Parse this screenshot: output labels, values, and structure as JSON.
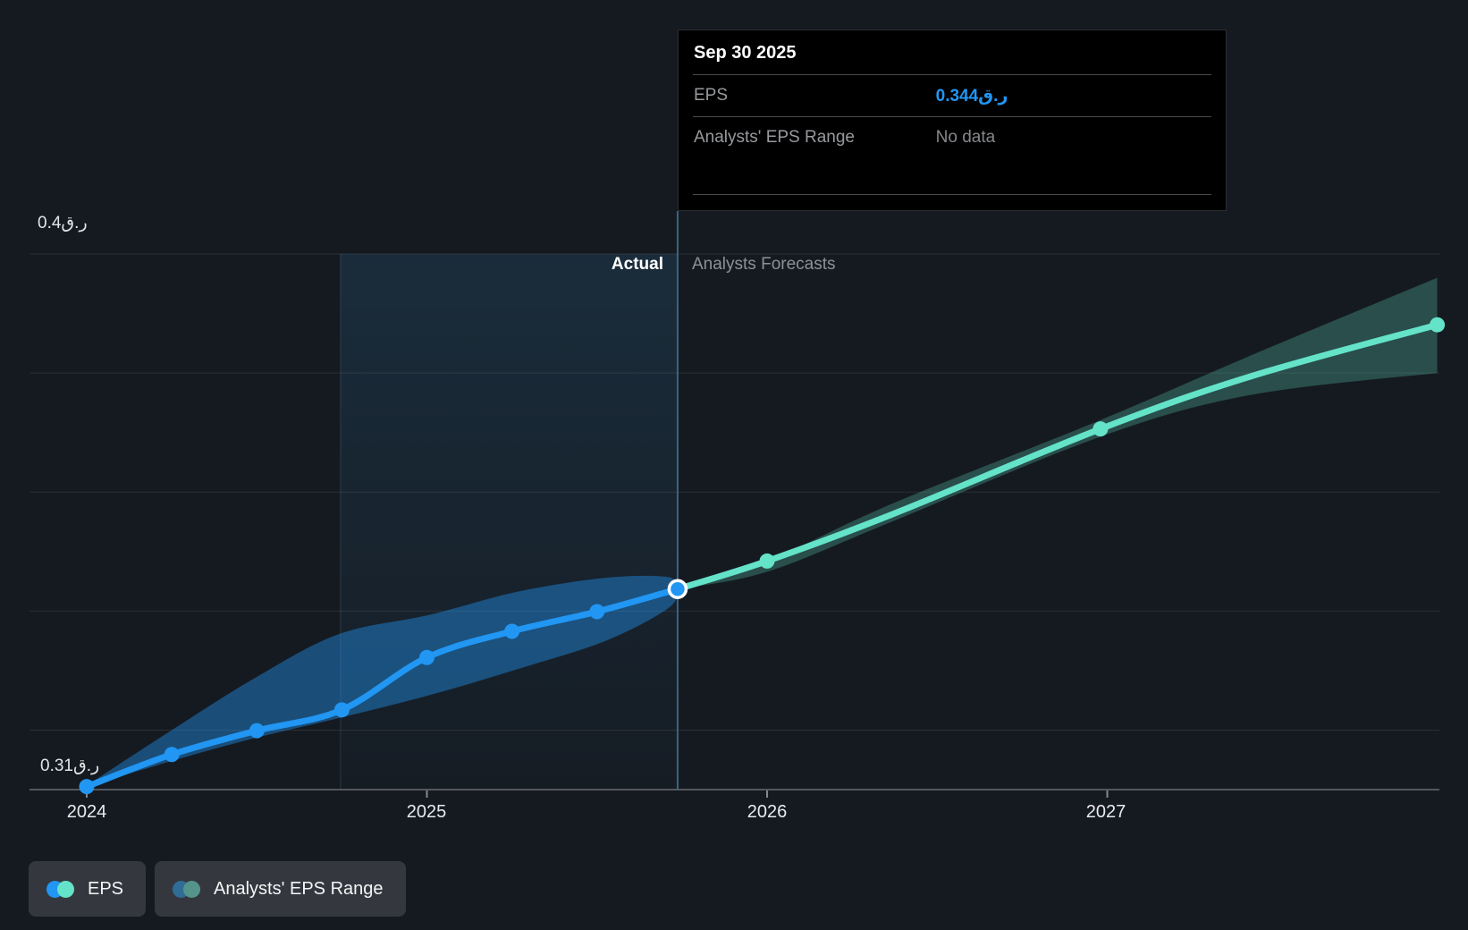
{
  "colors": {
    "background": "#151a21",
    "eps_blue": "#2196f3",
    "forecast_teal": "#64e3c9",
    "range_blue_muted": "#2f6d96",
    "range_teal_muted": "#55948b",
    "tooltip_value_blue": "#2196f3",
    "gridline": "rgba(255,255,255,0.09)",
    "axis_line": "#53575d",
    "divider_line": "#3a6580",
    "highlight_tint": "#348cc3"
  },
  "tooltip": {
    "title": "Sep 30 2025",
    "rows": [
      {
        "label": "EPS",
        "value": "0.344ر.ق",
        "style": "accent"
      },
      {
        "label": "Analysts' EPS Range",
        "value": "No data",
        "style": "muted"
      }
    ]
  },
  "phase_labels": {
    "actual": "Actual",
    "forecast": "Analysts Forecasts"
  },
  "y_axis": {
    "top": "0.4ر.ق",
    "bottom": "0.31ر.ق"
  },
  "x_axis": {
    "ticks": [
      "2024",
      "2025",
      "2026",
      "2027"
    ]
  },
  "legend": {
    "items": [
      {
        "label": "EPS",
        "colors": [
          "#2196f3",
          "#64e3c9"
        ]
      },
      {
        "label": "Analysts' EPS Range",
        "colors": [
          "#2f6d96",
          "#55948b"
        ]
      }
    ]
  },
  "chart_data": {
    "type": "line",
    "title": "EPS actual vs analysts' forecast",
    "currency_suffix": "ر.ق",
    "ylim": [
      0.31,
      0.4
    ],
    "xlim": [
      2023.83,
      2027.97
    ],
    "gridline_values": [
      0.4,
      0.38,
      0.36,
      0.34,
      0.32
    ],
    "x_tick_years": [
      2024,
      2025,
      2026,
      2027
    ],
    "divider_year": 2025.737,
    "highlight_span_years": [
      2024.746,
      2025.737
    ],
    "highlighted_point": {
      "x": 2025.737,
      "value": 0.3437,
      "display_value": "0.344ر.ق",
      "date": "Sep 30 2025"
    },
    "series": [
      {
        "name": "EPS",
        "role": "actual",
        "x": [
          2024.0,
          2024.25,
          2024.5,
          2024.75,
          2025.0,
          2025.25,
          2025.5,
          2025.737
        ],
        "values": [
          0.3105,
          0.3159,
          0.3199,
          0.3234,
          0.3322,
          0.3366,
          0.3399,
          0.3437
        ]
      },
      {
        "name": "EPS forecast",
        "role": "forecast",
        "x": [
          2025.737,
          2026.0,
          2026.37,
          2026.98,
          2027.42,
          2027.97
        ],
        "values": [
          0.3437,
          0.3484,
          0.3563,
          0.3706,
          0.3794,
          0.3881
        ],
        "marker_x": [
          2026.0,
          2026.98,
          2027.97
        ]
      }
    ],
    "bands": [
      {
        "name": "EPS range (actual)",
        "role": "actual",
        "x": [
          2024.0,
          2024.25,
          2024.49,
          2024.74,
          2025.01,
          2025.27,
          2025.53,
          2025.71,
          2025.737
        ],
        "high": [
          0.3107,
          0.32,
          0.3286,
          0.3361,
          0.3394,
          0.3433,
          0.3456,
          0.3457,
          0.3437
        ],
        "low": [
          0.3105,
          0.3148,
          0.3186,
          0.322,
          0.3259,
          0.3303,
          0.3351,
          0.3405,
          0.3437
        ]
      },
      {
        "name": "Analysts' EPS range (forecast)",
        "role": "forecast",
        "x": [
          2025.737,
          2026.0,
          2026.37,
          2026.98,
          2027.42,
          2027.97
        ],
        "high": [
          0.3437,
          0.3484,
          0.3581,
          0.3721,
          0.3829,
          0.396
        ],
        "low": [
          0.3437,
          0.3466,
          0.3551,
          0.3693,
          0.3763,
          0.38
        ]
      }
    ]
  }
}
